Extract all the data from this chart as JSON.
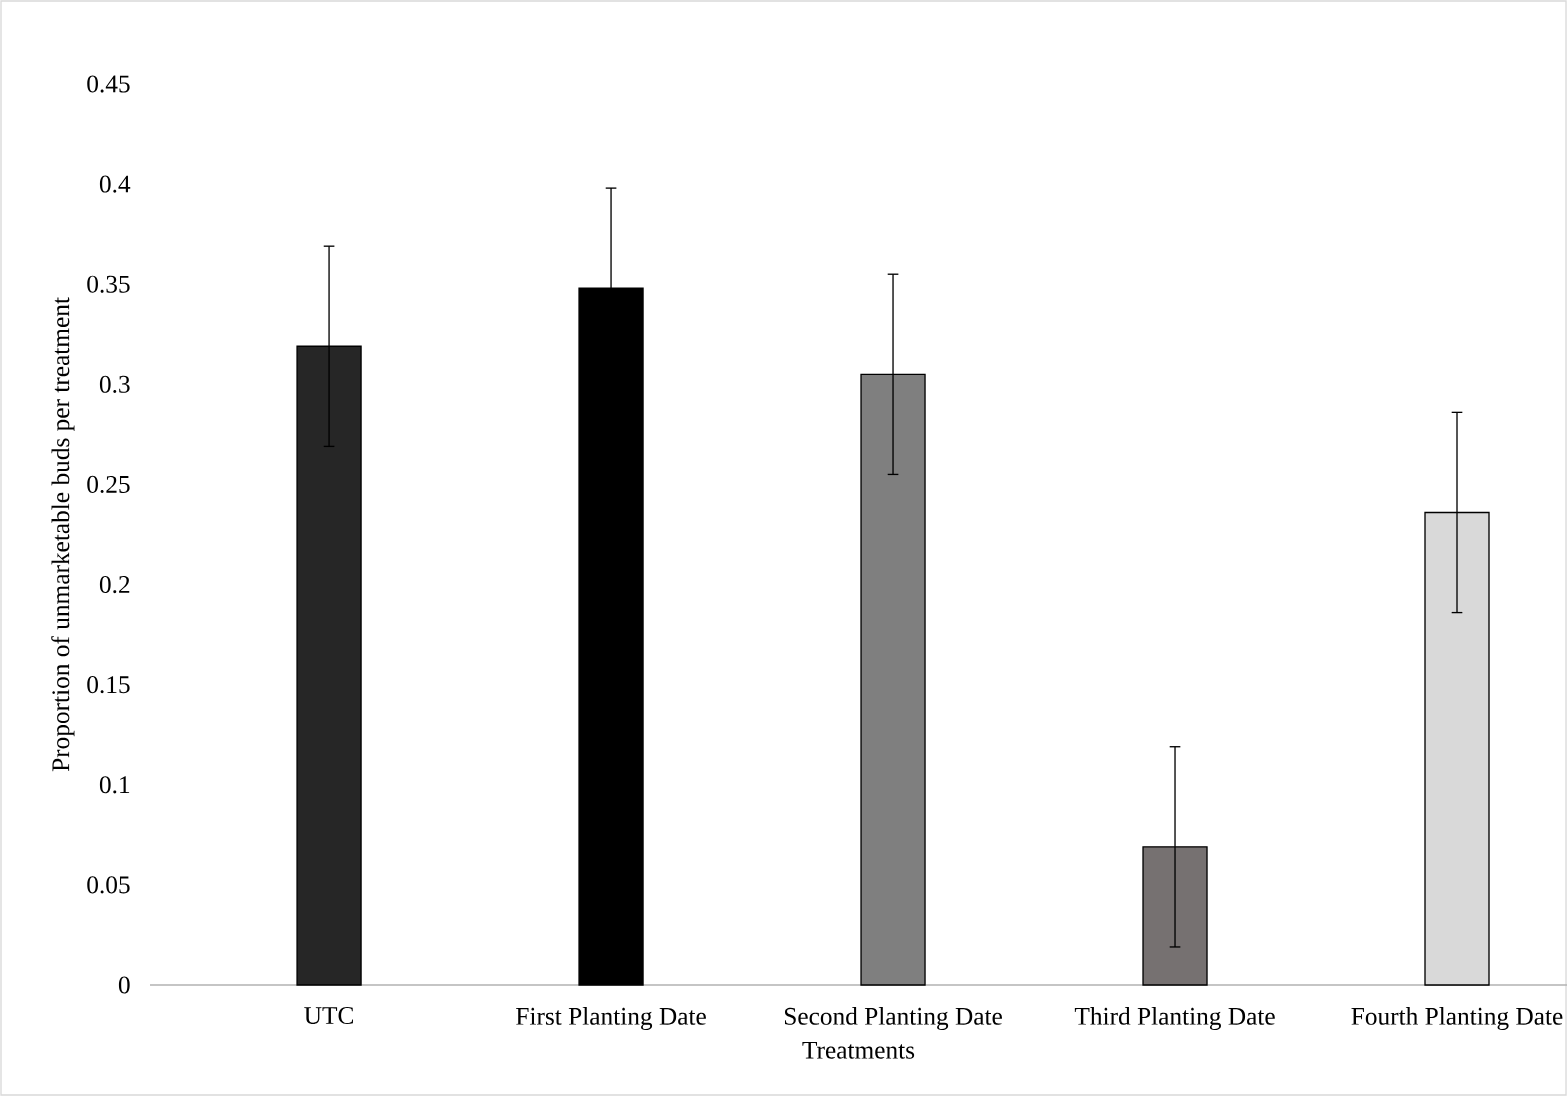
{
  "chart_data": {
    "type": "bar",
    "xlabel": "Treatments",
    "ylabel": "Proportion of unmarketable buds per treatment",
    "categories": [
      "UTC",
      "First Planting Date",
      "Second Planting Date",
      "Third Planting Date",
      "Fourth Planting Date"
    ],
    "values": [
      0.319,
      0.348,
      0.305,
      0.069,
      0.236
    ],
    "errors": [
      0.05,
      0.05,
      0.05,
      0.05,
      0.05
    ],
    "colors": [
      "#262626",
      "#000000",
      "#7f7f7f",
      "#767171",
      "#d9d9d9"
    ],
    "ylim": [
      0,
      0.45
    ],
    "yticks": [
      0,
      0.05,
      0.1,
      0.15,
      0.2,
      0.25,
      0.3,
      0.35,
      0.4,
      0.45
    ],
    "grid": false
  }
}
